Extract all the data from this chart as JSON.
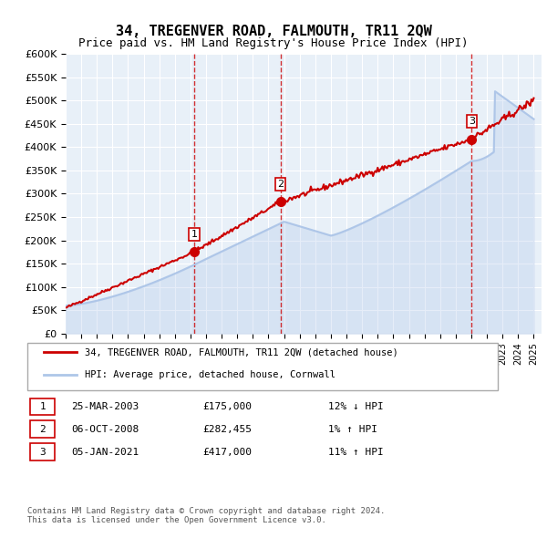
{
  "title": "34, TREGENVER ROAD, FALMOUTH, TR11 2QW",
  "subtitle": "Price paid vs. HM Land Registry's House Price Index (HPI)",
  "ylim": [
    0,
    600000
  ],
  "yticks": [
    0,
    50000,
    100000,
    150000,
    200000,
    250000,
    300000,
    350000,
    400000,
    450000,
    500000,
    550000,
    600000
  ],
  "ytick_labels": [
    "£0",
    "£50K",
    "£100K",
    "£150K",
    "£200K",
    "£250K",
    "£300K",
    "£350K",
    "£400K",
    "£450K",
    "£500K",
    "£550K",
    "£600K"
  ],
  "hpi_color": "#aec6e8",
  "price_color": "#cc0000",
  "sale_marker_color": "#cc0000",
  "vline_color": "#cc0000",
  "background_color": "#ffffff",
  "plot_bg_color": "#e8f0f8",
  "grid_color": "#ffffff",
  "sales": [
    {
      "date_num": 2003.23,
      "price": 175000,
      "label": "1"
    },
    {
      "date_num": 2008.77,
      "price": 282455,
      "label": "2"
    },
    {
      "date_num": 2021.02,
      "price": 417000,
      "label": "3"
    }
  ],
  "legend_entries": [
    {
      "label": "34, TREGENVER ROAD, FALMOUTH, TR11 2QW (detached house)",
      "color": "#cc0000"
    },
    {
      "label": "HPI: Average price, detached house, Cornwall",
      "color": "#aec6e8"
    }
  ],
  "table_rows": [
    {
      "num": "1",
      "date": "25-MAR-2003",
      "price": "£175,000",
      "hpi": "12% ↓ HPI"
    },
    {
      "num": "2",
      "date": "06-OCT-2008",
      "price": "£282,455",
      "hpi": "1% ↑ HPI"
    },
    {
      "num": "3",
      "date": "05-JAN-2021",
      "price": "£417,000",
      "hpi": "11% ↑ HPI"
    }
  ],
  "footer": "Contains HM Land Registry data © Crown copyright and database right 2024.\nThis data is licensed under the Open Government Licence v3.0.",
  "xmin": 1995,
  "xmax": 2025.5
}
